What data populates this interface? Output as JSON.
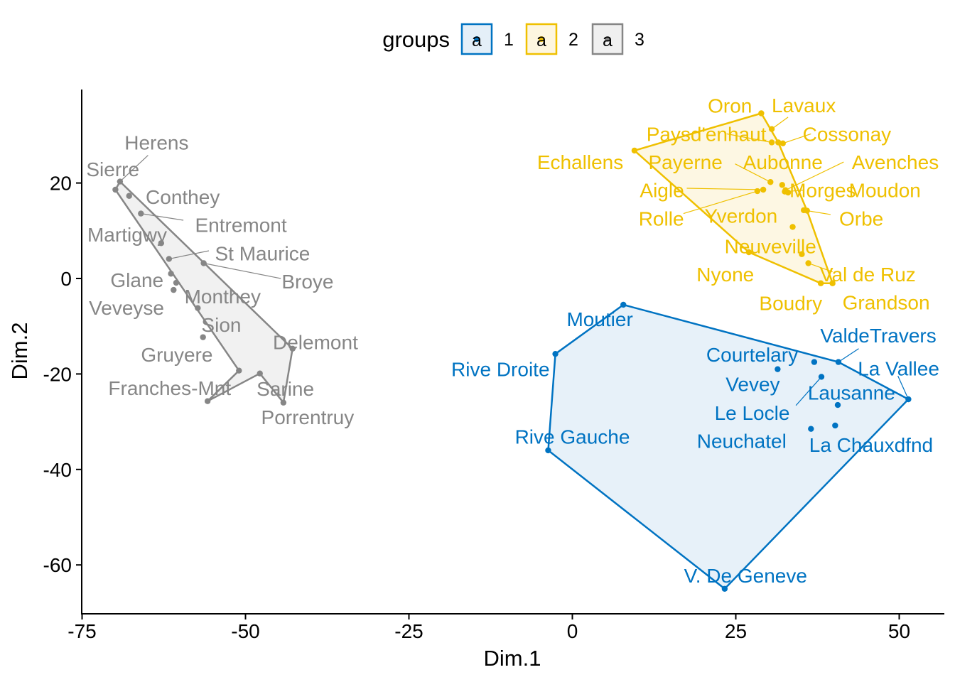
{
  "chart_data": {
    "type": "scatter",
    "xlabel": "Dim.1",
    "ylabel": "Dim.2",
    "xlim": [
      -75.5,
      57
    ],
    "ylim": [
      -70,
      39
    ],
    "x_ticks": [
      -75,
      -50,
      -25,
      0,
      25,
      50
    ],
    "x_tick_labels": [
      "-75",
      "-50",
      "-25",
      "0",
      "25",
      "50"
    ],
    "y_ticks": [
      -60,
      -40,
      -20,
      0,
      20
    ],
    "y_tick_labels": [
      "-60",
      "-40",
      "-20",
      "0",
      "20"
    ],
    "grid": false,
    "legend": {
      "title": "groups",
      "position": "top",
      "entries": [
        {
          "key": "1",
          "label": "1",
          "glyph": "a",
          "color": "#0073C2",
          "fill": "#E4EFF8"
        },
        {
          "key": "2",
          "label": "2",
          "glyph": "a",
          "color": "#EFC000",
          "fill": "#FDF6E0"
        },
        {
          "key": "3",
          "label": "3",
          "glyph": "a",
          "color": "#868686",
          "fill": "#F0F0F0"
        }
      ]
    },
    "series": [
      {
        "group": "1",
        "color": "#0073C2",
        "fill": "#E4EFF8",
        "hull": [
          "Moutier",
          "ValdeTravers",
          "La Vallee",
          "V. De Geneve",
          "Rive Gauche",
          "Rive Droite"
        ],
        "points": [
          {
            "name": "Moutier",
            "x": 7.8,
            "y": -5.5,
            "lx": 4.2,
            "ly": -8.5,
            "anchor": "middle"
          },
          {
            "name": "Rive Droite",
            "x": -2.6,
            "y": -15.8,
            "lx": -11,
            "ly": -19,
            "anchor": "middle"
          },
          {
            "name": "Rive Gauche",
            "x": -3.7,
            "y": -36,
            "lx": 0,
            "ly": -33.1,
            "anchor": "middle"
          },
          {
            "name": "V. De Geneve",
            "x": 23.3,
            "y": -65,
            "lx": 26.5,
            "ly": -62.2,
            "anchor": "middle"
          },
          {
            "name": "ValdeTravers",
            "x": 40.7,
            "y": -17.5,
            "lx": 46.8,
            "ly": -11.9,
            "anchor": "middle"
          },
          {
            "name": "La Vallee",
            "x": 51.4,
            "y": -25.3,
            "lx": 49.9,
            "ly": -18.8,
            "anchor": "middle"
          },
          {
            "name": "Courtelary",
            "x": 31.4,
            "y": -19,
            "lx": 27.5,
            "ly": -15.9,
            "anchor": "middle"
          },
          {
            "name": "Vevey",
            "x": 37,
            "y": -17.5,
            "lx": 27.6,
            "ly": -22.1,
            "anchor": "middle"
          },
          {
            "name": "Lausanne",
            "x": 38.1,
            "y": -20.6,
            "lx": 42.7,
            "ly": -23.9,
            "anchor": "middle"
          },
          {
            "name": "Le Locle",
            "x": 40.6,
            "y": -26.5,
            "lx": 27.5,
            "ly": -28.1,
            "anchor": "middle"
          },
          {
            "name": "Neuchatel",
            "x": 36.5,
            "y": -31.5,
            "lx": 25.9,
            "ly": -34,
            "anchor": "middle"
          },
          {
            "name": "La Chauxdfnd",
            "x": 40.2,
            "y": -30.8,
            "lx": 45.7,
            "ly": -34.8,
            "anchor": "middle"
          }
        ],
        "leaders": [
          [
            "ValdeTravers",
            40.7,
            -17.5,
            43.8,
            -14.7
          ],
          [
            "La Vallee",
            51.4,
            -25.3,
            49.8,
            -20.4
          ],
          [
            "Le Locle",
            38.1,
            -20.6,
            34.2,
            -26.6
          ]
        ]
      },
      {
        "group": "2",
        "color": "#EFC000",
        "fill": "#FDF6E0",
        "hull": [
          "Oron",
          "Cossonay",
          "Orbe",
          "Grandson",
          "Boudry",
          "Nyone",
          "Echallens"
        ],
        "points": [
          {
            "name": "Oron",
            "x": 28.9,
            "y": 34.6,
            "lx": 24.1,
            "ly": 36.2,
            "anchor": "middle"
          },
          {
            "name": "Lavaux",
            "x": 30.5,
            "y": 31.3,
            "lx": 35.4,
            "ly": 36.3,
            "anchor": "middle"
          },
          {
            "name": "Paysd'enhaut",
            "x": 30.5,
            "y": 28.5,
            "lx": 20.5,
            "ly": 30.3,
            "anchor": "middle"
          },
          {
            "name": "Cossonay",
            "x": 31.5,
            "y": 28.5,
            "lx": 42,
            "ly": 30.3,
            "anchor": "middle"
          },
          {
            "name": "Cossonay-2",
            "x": 32.2,
            "y": 28.3,
            "lx": null,
            "ly": null,
            "anchor": "middle"
          },
          {
            "name": "Echallens",
            "x": 9.5,
            "y": 26.8,
            "lx": 1.2,
            "ly": 24.4,
            "anchor": "middle"
          },
          {
            "name": "Payerne",
            "x": 30.3,
            "y": 20.2,
            "lx": 17.3,
            "ly": 24.4,
            "anchor": "middle"
          },
          {
            "name": "Aubonne",
            "x": 32.1,
            "y": 19.6,
            "lx": 32.2,
            "ly": 24.4,
            "anchor": "middle"
          },
          {
            "name": "Avenches",
            "x": 32.6,
            "y": 18.5,
            "lx": 49.4,
            "ly": 24.4,
            "anchor": "middle"
          },
          {
            "name": "Aigle",
            "x": 29.2,
            "y": 18.6,
            "lx": 13.7,
            "ly": 18.5,
            "anchor": "middle"
          },
          {
            "name": "Morges",
            "x": 32.5,
            "y": 18.2,
            "lx": 38.3,
            "ly": 18.5,
            "anchor": "middle"
          },
          {
            "name": "Moudon",
            "x": 33,
            "y": 18,
            "lx": 47.8,
            "ly": 18.5,
            "anchor": "middle"
          },
          {
            "name": "Rolle",
            "x": 28.3,
            "y": 18.3,
            "lx": 13.6,
            "ly": 12.6,
            "anchor": "middle"
          },
          {
            "name": "Yverdon",
            "x": 35.4,
            "y": 14.3,
            "lx": 25.8,
            "ly": 13.2,
            "anchor": "middle"
          },
          {
            "name": "Orbe",
            "x": 35.9,
            "y": 14.2,
            "lx": 44.2,
            "ly": 12.6,
            "anchor": "middle"
          },
          {
            "name": "Neuveville",
            "x": 33.7,
            "y": 10.8,
            "lx": 30.3,
            "ly": 6.8,
            "anchor": "middle"
          },
          {
            "name": "Nyone",
            "x": 27,
            "y": 5.5,
            "lx": 23.4,
            "ly": 0.9,
            "anchor": "middle"
          },
          {
            "name": "Neuveville-2",
            "x": 35.1,
            "y": 5.1,
            "lx": null,
            "ly": null,
            "anchor": "middle"
          },
          {
            "name": "Val de Ruz",
            "x": 36.1,
            "y": 3.2,
            "lx": 45.2,
            "ly": 0.9,
            "anchor": "middle"
          },
          {
            "name": "Boudry",
            "x": 38,
            "y": -1,
            "lx": 33.4,
            "ly": -5.1,
            "anchor": "middle"
          },
          {
            "name": "Grandson",
            "x": 39.8,
            "y": -1,
            "lx": 48,
            "ly": -5,
            "anchor": "middle"
          }
        ],
        "leaders": [
          [
            "Lavaux",
            30.5,
            31.3,
            33,
            33.8
          ],
          [
            "Paysd'enhaut",
            30.5,
            28.5,
            23.6,
            30.3
          ],
          [
            "Cossonay",
            32.2,
            28.3,
            36.5,
            30.3
          ],
          [
            "Payerne",
            30.3,
            20.2,
            24.9,
            24
          ],
          [
            "Avenches",
            32.6,
            18.5,
            41.5,
            24.4
          ],
          [
            "Aigle",
            29.2,
            18.6,
            17.5,
            18.9
          ],
          [
            "Morges",
            32.5,
            18.2,
            35.4,
            18.5
          ],
          [
            "Rolle",
            28.3,
            18.3,
            17,
            13.6
          ],
          [
            "Orbe",
            35.9,
            14.2,
            39.5,
            13.4
          ],
          [
            "Val de Ruz",
            36.1,
            3.2,
            39.8,
            1.4
          ]
        ]
      },
      {
        "group": "3",
        "color": "#868686",
        "fill": "#F0F0F0",
        "hull": [
          "Sierre",
          "Herens",
          "Delemont",
          "Porrentruy",
          "Sarine",
          "Franches-Mnt",
          "Gruyere"
        ],
        "points": [
          {
            "name": "Herens",
            "x": -69.2,
            "y": 20.3,
            "lx": -63.6,
            "ly": 28.5,
            "anchor": "middle"
          },
          {
            "name": "Sierre",
            "x": -69.9,
            "y": 18.6,
            "lx": -70.3,
            "ly": 22.9,
            "anchor": "middle"
          },
          {
            "name": "Conthey",
            "x": -67.8,
            "y": 17.3,
            "lx": -59.6,
            "ly": 17.1,
            "anchor": "middle"
          },
          {
            "name": "Entremont",
            "x": -66,
            "y": 13.6,
            "lx": -50.7,
            "ly": 11.2,
            "anchor": "middle"
          },
          {
            "name": "Martigwy",
            "x": -62.9,
            "y": 7.4,
            "lx": -68.1,
            "ly": 9.2,
            "anchor": "middle"
          },
          {
            "name": "St Maurice",
            "x": -61.7,
            "y": 4.1,
            "lx": -47.4,
            "ly": 5.3,
            "anchor": "middle"
          },
          {
            "name": "Broye",
            "x": -56.4,
            "y": 3.2,
            "lx": -40.5,
            "ly": -0.6,
            "anchor": "middle"
          },
          {
            "name": "Glane",
            "x": -61.4,
            "y": 1,
            "lx": -66.6,
            "ly": -0.3,
            "anchor": "middle"
          },
          {
            "name": "Glane-2",
            "x": -60.6,
            "y": -0.9,
            "lx": null,
            "ly": null,
            "anchor": "middle"
          },
          {
            "name": "Monthey",
            "x": -61,
            "y": -2.4,
            "lx": -53.5,
            "ly": -3.7,
            "anchor": "middle"
          },
          {
            "name": "Veveyse",
            "x": -57.3,
            "y": -6.2,
            "lx": -68.2,
            "ly": -6.1,
            "anchor": "middle"
          },
          {
            "name": "Sion",
            "x": -56.5,
            "y": -12.3,
            "lx": -53.7,
            "ly": -9.7,
            "anchor": "middle"
          },
          {
            "name": "Gruyere",
            "x": -51,
            "y": -19.3,
            "lx": -60.5,
            "ly": -15.9,
            "anchor": "middle"
          },
          {
            "name": "Delemont",
            "x": -42.8,
            "y": -14.7,
            "lx": -39.3,
            "ly": -13.3,
            "anchor": "middle"
          },
          {
            "name": "Sarine",
            "x": -47.8,
            "y": -19.9,
            "lx": -43.9,
            "ly": -23.1,
            "anchor": "middle"
          },
          {
            "name": "Franches-Mnt",
            "x": -55.8,
            "y": -25.7,
            "lx": -61.6,
            "ly": -22.9,
            "anchor": "middle"
          },
          {
            "name": "Porrentruy",
            "x": -44.2,
            "y": -26,
            "lx": -40.5,
            "ly": -29,
            "anchor": "middle"
          }
        ],
        "leaders": [
          [
            "Herens",
            -69.2,
            20.3,
            -64.9,
            25.8
          ],
          [
            "Entremont",
            -66,
            13.6,
            -59.5,
            12.2
          ],
          [
            "St Maurice",
            -61.7,
            4.1,
            -55.6,
            5.8
          ],
          [
            "Broye",
            -56.4,
            3.2,
            -44.6,
            0
          ]
        ]
      }
    ]
  }
}
